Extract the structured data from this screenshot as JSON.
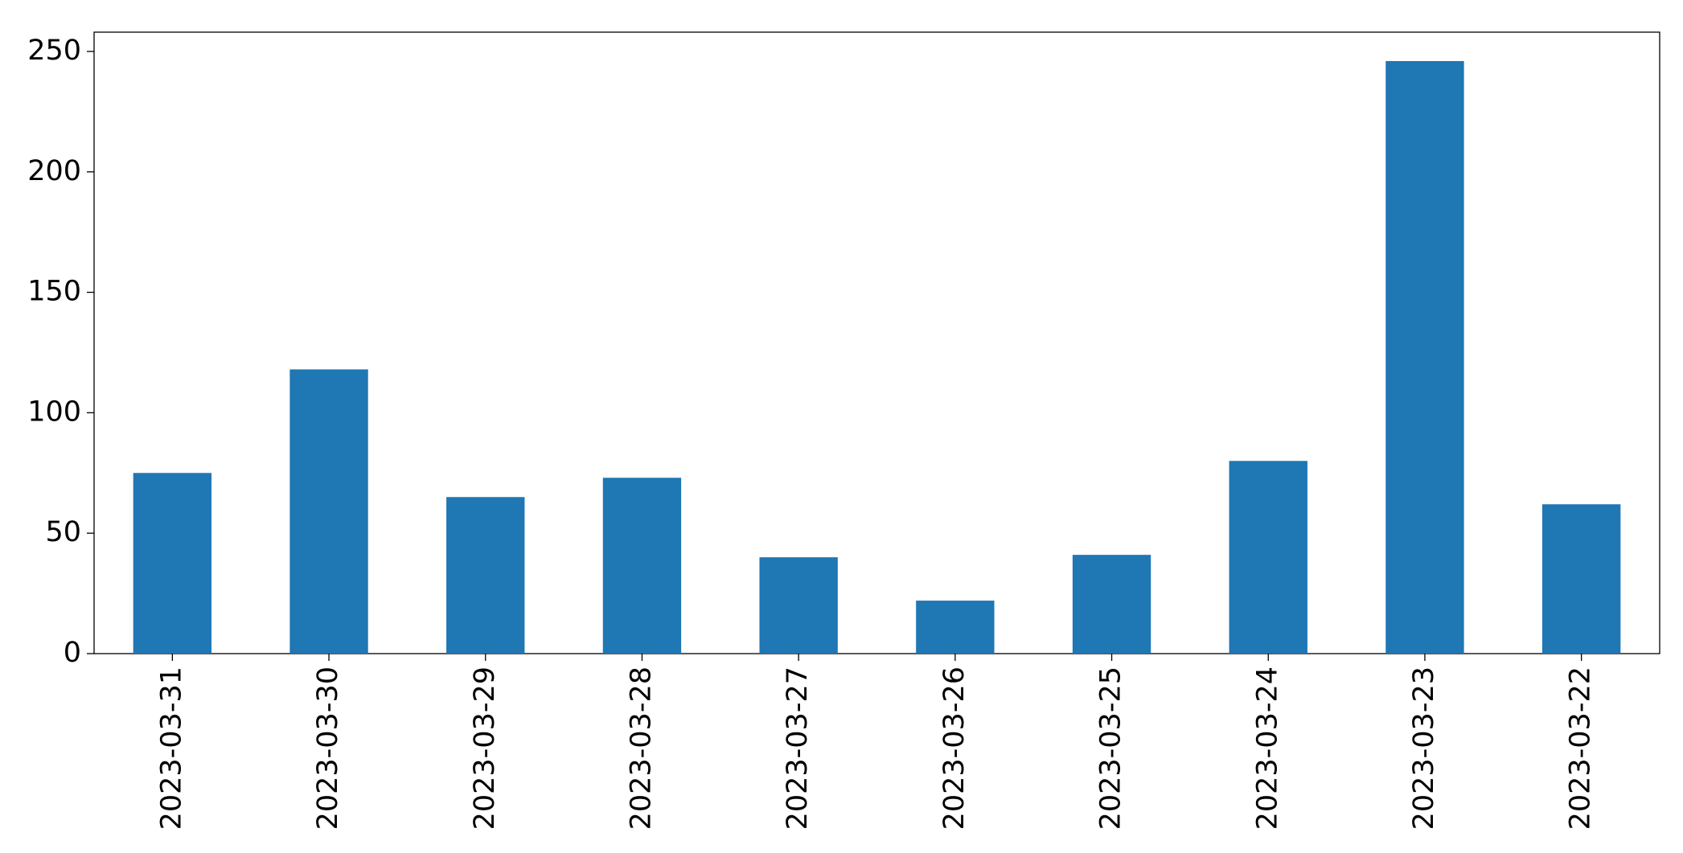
{
  "chart_data": {
    "type": "bar",
    "categories": [
      "2023-03-31",
      "2023-03-30",
      "2023-03-29",
      "2023-03-28",
      "2023-03-27",
      "2023-03-26",
      "2023-03-25",
      "2023-03-24",
      "2023-03-23",
      "2023-03-22"
    ],
    "values": [
      75,
      118,
      65,
      73,
      40,
      22,
      41,
      80,
      246,
      62
    ],
    "color": "#1f77b4",
    "ylim": [
      0,
      258
    ],
    "yticks": [
      0,
      50,
      100,
      150,
      200,
      250
    ],
    "grid": false
  }
}
